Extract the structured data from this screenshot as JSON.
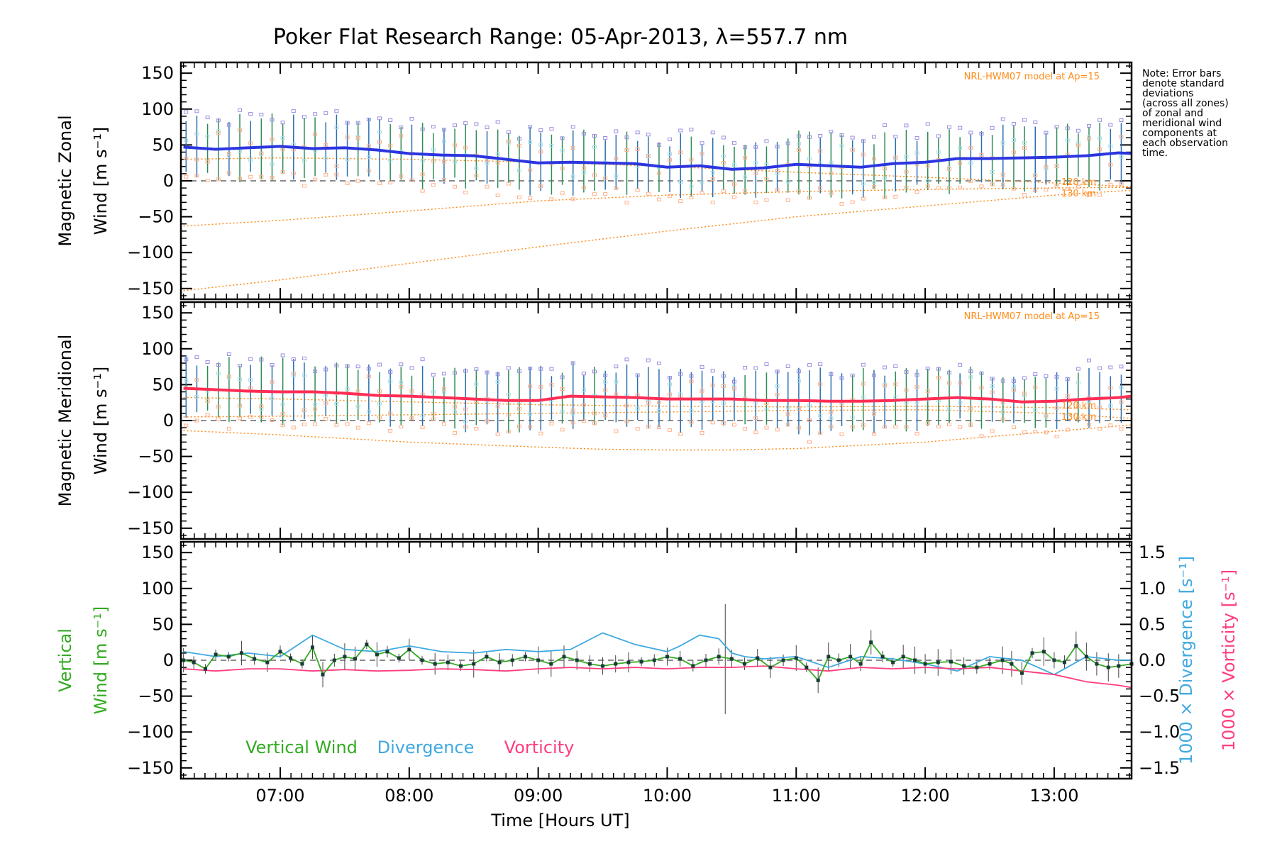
{
  "chart_data": {
    "type": "line",
    "title": "Poker Flat Research Range: 05-Apr-2013, λ=557.7 nm",
    "xlabel": "Time [Hours UT]",
    "x_range_hours": [
      6.23,
      13.6
    ],
    "x_ticks": [
      7,
      8,
      9,
      10,
      11,
      12,
      13
    ],
    "x_tick_labels": [
      "07:00",
      "08:00",
      "09:00",
      "10:00",
      "11:00",
      "12:00",
      "13:00"
    ],
    "y_range": [
      -165,
      165
    ],
    "y_ticks": [
      150,
      100,
      50,
      0,
      -50,
      -100,
      -150
    ],
    "y_tick_labels": [
      "150",
      "100",
      "50",
      "0",
      "−50",
      "−100",
      "−150"
    ],
    "note": [
      "Note: Error bars",
      "denote standard",
      "deviations",
      "(across all zones)",
      "of zonal and",
      "meridional wind",
      "components at",
      "each observation",
      "time."
    ],
    "panels": [
      {
        "id": "zonal",
        "ylabel_line1": "Magnetic Zonal",
        "ylabel_line2": "Wind [m s⁻¹]",
        "model_label": "NRL-HWM07 model at Ap=15",
        "model_alt_labels": [
          "120 km",
          "130 km"
        ],
        "series": [
          {
            "name": "Mean zonal wind",
            "color": "#2b35e0",
            "x": [
              6.25,
              6.5,
              6.75,
              7.0,
              7.25,
              7.5,
              7.75,
              8.0,
              8.25,
              8.5,
              8.75,
              9.0,
              9.25,
              9.5,
              9.75,
              10.0,
              10.25,
              10.5,
              10.75,
              11.0,
              11.25,
              11.5,
              11.75,
              12.0,
              12.25,
              12.5,
              12.75,
              13.0,
              13.25,
              13.5,
              13.6
            ],
            "y": [
              47,
              44,
              46,
              48,
              45,
              46,
              43,
              38,
              36,
              35,
              30,
              25,
              26,
              25,
              24,
              19,
              21,
              16,
              18,
              23,
              21,
              19,
              24,
              26,
              31,
              31,
              32,
              33,
              35,
              39,
              38
            ]
          },
          {
            "name": "Model 120 km",
            "color": "#ff8c1a",
            "x": [
              6.25,
              7.0,
              8.0,
              9.0,
              10.0,
              11.0,
              12.0,
              13.0,
              13.6
            ],
            "y": [
              30,
              32,
              30,
              26,
              20,
              12,
              5,
              -3,
              -8
            ]
          },
          {
            "name": "Model low",
            "color": "#ff8c1a",
            "x": [
              6.25,
              7.0,
              8.0,
              9.0,
              10.0,
              11.0,
              12.0,
              13.0,
              13.6
            ],
            "y": [
              -63,
              -55,
              -42,
              -28,
              -20,
              -15,
              -12,
              -10,
              -9
            ]
          },
          {
            "name": "Model 130 km",
            "color": "#ff8c1a",
            "x": [
              6.25,
              7.0,
              8.0,
              9.0,
              10.0,
              11.0,
              12.0,
              13.0,
              13.6
            ],
            "y": [
              -153,
              -138,
              -115,
              -92,
              -70,
              -50,
              -35,
              -20,
              -13
            ]
          }
        ]
      },
      {
        "id": "meridional",
        "ylabel_line1": "Magnetic Meridional",
        "ylabel_line2": "Wind [m s⁻¹]",
        "model_label": "NRL-HWM07 model at Ap=15",
        "model_alt_labels": [
          "120 km",
          "130 km"
        ],
        "series": [
          {
            "name": "Mean meridional wind",
            "color": "#ff2d55",
            "x": [
              6.25,
              6.5,
              6.75,
              7.0,
              7.25,
              7.5,
              7.75,
              8.0,
              8.25,
              8.5,
              8.75,
              9.0,
              9.25,
              9.5,
              9.75,
              10.0,
              10.25,
              10.5,
              10.75,
              11.0,
              11.25,
              11.5,
              11.75,
              12.0,
              12.25,
              12.5,
              12.75,
              13.0,
              13.25,
              13.5,
              13.6
            ],
            "y": [
              45,
              43,
              41,
              40,
              40,
              38,
              35,
              34,
              32,
              30,
              28,
              28,
              34,
              33,
              32,
              30,
              30,
              30,
              28,
              28,
              27,
              27,
              28,
              30,
              32,
              30,
              26,
              27,
              30,
              32,
              34
            ]
          },
          {
            "name": "Model 120 km",
            "color": "#ff8c1a",
            "x": [
              6.25,
              7.0,
              8.0,
              9.0,
              10.0,
              11.0,
              12.0,
              13.0,
              13.6
            ],
            "y": [
              32,
              30,
              26,
              22,
              20,
              19,
              20,
              18,
              15
            ]
          },
          {
            "name": "Model 130 km",
            "color": "#ff8c1a",
            "x": [
              6.25,
              7.0,
              8.0,
              9.0,
              10.0,
              11.0,
              12.0,
              13.0,
              13.6
            ],
            "y": [
              5,
              6,
              8,
              10,
              12,
              14,
              15,
              10,
              3
            ]
          },
          {
            "name": "Model low",
            "color": "#ff8c1a",
            "x": [
              6.25,
              7.0,
              8.0,
              9.0,
              9.5,
              10.0,
              10.5,
              11.0,
              12.0,
              13.0,
              13.6
            ],
            "y": [
              -14,
              -20,
              -30,
              -37,
              -40,
              -41,
              -41,
              -39,
              -30,
              -15,
              -6
            ]
          }
        ]
      },
      {
        "id": "vertical",
        "ylabel_line1": "Vertical",
        "ylabel_line2": "Wind [m s⁻¹]",
        "right_ticks": [
          1.5,
          1.0,
          0.5,
          0.0,
          -0.5,
          -1.0,
          -1.5
        ],
        "right_tick_labels": [
          "1.5",
          "1.0",
          "0.5",
          "0.0",
          "−0.5",
          "−1.0",
          "−1.5"
        ],
        "right_range": [
          -1.65,
          1.65
        ],
        "right_label_divergence": "1000 × Divergence [s⁻¹]",
        "right_label_vorticity": "1000 × Vorticity [s⁻¹]",
        "legend": [
          "Vertical Wind",
          "Divergence",
          "Vorticity"
        ],
        "series": [
          {
            "name": "Vertical Wind",
            "color": "#33aa22",
            "x": [
              6.25,
              6.33,
              6.42,
              6.5,
              6.6,
              6.7,
              6.8,
              6.9,
              7.0,
              7.08,
              7.17,
              7.25,
              7.33,
              7.42,
              7.5,
              7.58,
              7.67,
              7.75,
              7.83,
              7.92,
              8.0,
              8.1,
              8.2,
              8.3,
              8.4,
              8.5,
              8.6,
              8.7,
              8.8,
              8.9,
              9.0,
              9.1,
              9.2,
              9.3,
              9.4,
              9.5,
              9.6,
              9.7,
              9.8,
              9.9,
              10.0,
              10.1,
              10.2,
              10.3,
              10.4,
              10.5,
              10.6,
              10.7,
              10.8,
              10.9,
              11.0,
              11.08,
              11.17,
              11.25,
              11.33,
              11.42,
              11.5,
              11.58,
              11.67,
              11.75,
              11.83,
              11.92,
              12.0,
              12.1,
              12.2,
              12.3,
              12.4,
              12.5,
              12.6,
              12.67,
              12.75,
              12.83,
              12.92,
              13.0,
              13.08,
              13.17,
              13.25,
              13.33,
              13.42,
              13.5,
              13.6
            ],
            "y": [
              0,
              -3,
              -12,
              8,
              5,
              10,
              2,
              -3,
              12,
              3,
              -5,
              18,
              -20,
              0,
              5,
              2,
              22,
              8,
              12,
              3,
              15,
              0,
              -5,
              -3,
              -8,
              -5,
              5,
              -3,
              0,
              5,
              0,
              -5,
              5,
              0,
              -5,
              -8,
              -5,
              -3,
              -2,
              0,
              5,
              2,
              -8,
              0,
              5,
              2,
              -5,
              3,
              -10,
              0,
              3,
              -10,
              -28,
              5,
              0,
              5,
              -5,
              25,
              5,
              -3,
              5,
              0,
              -5,
              -3,
              -2,
              -8,
              -10,
              -5,
              0,
              -5,
              -18,
              10,
              12,
              0,
              -3,
              20,
              5,
              -5,
              -10,
              -8,
              -5
            ]
          },
          {
            "name": "Divergence",
            "color": "#3fa9e0",
            "axis": "right",
            "x": [
              6.25,
              6.5,
              6.75,
              7.0,
              7.25,
              7.5,
              7.75,
              8.0,
              8.25,
              8.5,
              8.75,
              9.0,
              9.25,
              9.5,
              9.75,
              10.0,
              10.1,
              10.25,
              10.4,
              10.5,
              10.6,
              10.75,
              11.0,
              11.25,
              11.5,
              11.75,
              12.0,
              12.25,
              12.5,
              12.75,
              13.0,
              13.25,
              13.5,
              13.6
            ],
            "y": [
              0.12,
              0.05,
              0.1,
              0.05,
              0.35,
              0.15,
              0.12,
              0.2,
              0.12,
              0.1,
              0.15,
              0.12,
              0.15,
              0.38,
              0.22,
              0.12,
              0.2,
              0.35,
              0.3,
              0.1,
              0.05,
              0.02,
              0.05,
              -0.1,
              0.05,
              0.02,
              -0.05,
              -0.15,
              0.05,
              0.0,
              -0.2,
              0.05,
              0.0,
              0.0
            ]
          },
          {
            "name": "Vorticity",
            "color": "#ff3d7f",
            "axis": "right",
            "x": [
              6.25,
              6.5,
              6.75,
              7.0,
              7.25,
              7.5,
              7.75,
              8.0,
              8.25,
              8.5,
              8.75,
              9.0,
              9.25,
              9.5,
              9.75,
              10.0,
              10.25,
              10.5,
              10.75,
              11.0,
              11.25,
              11.5,
              11.75,
              12.0,
              12.25,
              12.5,
              12.75,
              13.0,
              13.25,
              13.5,
              13.6
            ],
            "y": [
              -0.12,
              -0.15,
              -0.12,
              -0.12,
              -0.15,
              -0.13,
              -0.15,
              -0.14,
              -0.12,
              -0.13,
              -0.15,
              -0.12,
              -0.1,
              -0.12,
              -0.1,
              -0.12,
              -0.1,
              -0.1,
              -0.08,
              -0.12,
              -0.15,
              -0.1,
              -0.12,
              -0.1,
              -0.12,
              -0.1,
              -0.15,
              -0.2,
              -0.3,
              -0.35,
              -0.38
            ]
          }
        ]
      }
    ]
  },
  "colors": {
    "zonal_mean": "#2b35e0",
    "meridional_mean": "#ff2d55",
    "model": "#ff8c1a",
    "vertical": "#33aa22",
    "divergence": "#3fa9e0",
    "vorticity": "#ff3d7f",
    "error_bar_blue": "#2a6fb0",
    "error_bar_green": "#2e8b57",
    "scatter_purple": "#9a8fe0",
    "scatter_orange": "#ffb08a",
    "scatter_cyan": "#a8e0e8"
  }
}
